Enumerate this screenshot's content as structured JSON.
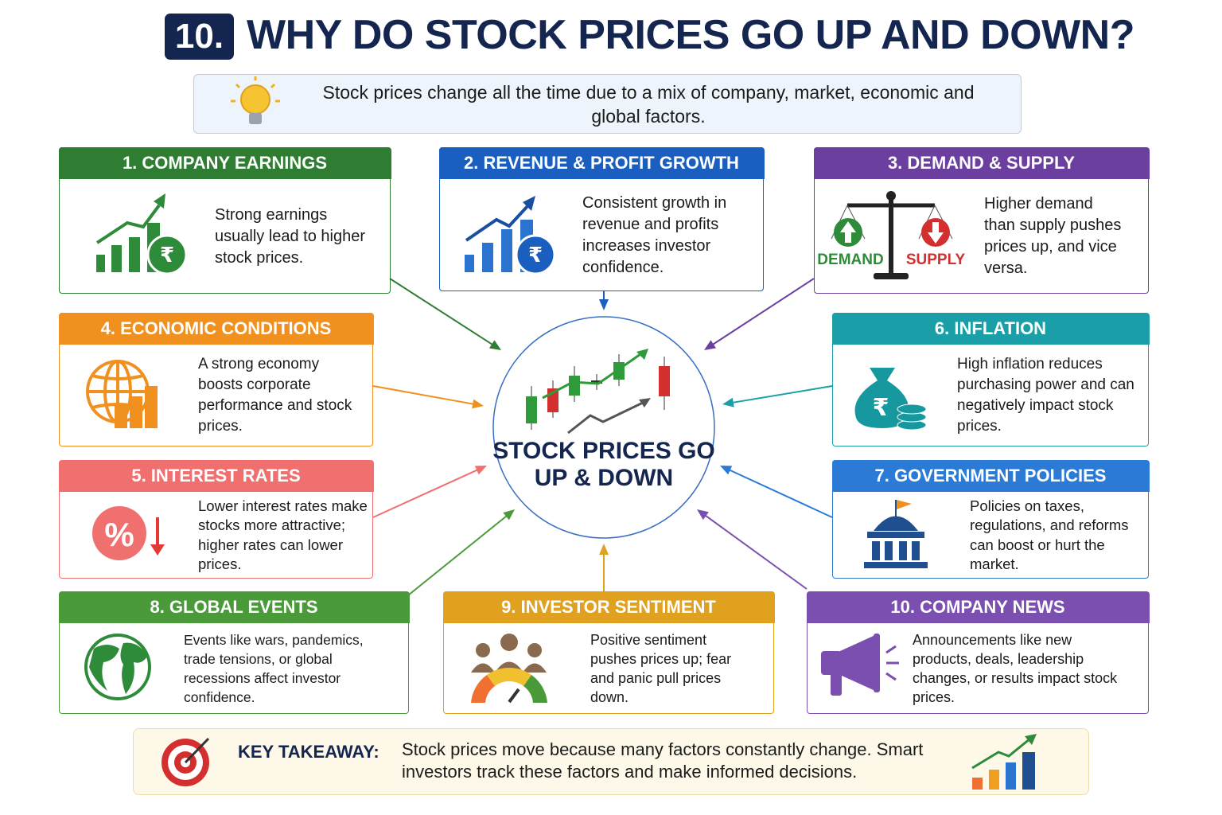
{
  "header": {
    "number": "10.",
    "title": "WHY DO STOCK PRICES GO UP AND DOWN?"
  },
  "intro": "Stock prices change all the time due to a mix of company, market, economic and global factors.",
  "center": {
    "label": "STOCK PRICES GO UP & DOWN"
  },
  "factors": [
    {
      "title": "1. COMPANY EARNINGS",
      "text": "Strong earnings usually lead to higher stock prices."
    },
    {
      "title": "2. REVENUE & PROFIT GROWTH",
      "text": "Consistent growth in revenue and profits increases investor confidence."
    },
    {
      "title": "3. DEMAND & SUPPLY",
      "text": "Higher demand than supply pushes prices up, and vice versa.",
      "icon_labels": [
        "DEMAND",
        "SUPPLY"
      ]
    },
    {
      "title": "4. ECONOMIC CONDITIONS",
      "text": "A strong economy boosts corporate performance and stock prices."
    },
    {
      "title": "5. INTEREST RATES",
      "text": "Lower interest rates make stocks more attractive; higher rates can lower prices."
    },
    {
      "title": "6. INFLATION",
      "text": "High inflation reduces purchasing power and can negatively impact stock prices."
    },
    {
      "title": "7. GOVERNMENT POLICIES",
      "text": "Policies on taxes, regulations, and reforms can boost or hurt the market."
    },
    {
      "title": "8. GLOBAL EVENTS",
      "text": "Events like wars, pandemics, trade tensions, or global recessions affect investor confidence."
    },
    {
      "title": "9. INVESTOR SENTIMENT",
      "text": "Positive sentiment pushes prices up; fear and panic pull prices down."
    },
    {
      "title": "10. COMPANY NEWS",
      "text": "Announcements like new products, deals, leadership changes, or results impact stock prices."
    }
  ],
  "takeaway": {
    "label": "KEY TAKEAWAY:",
    "text": "Stock prices move because many factors constantly change. Smart investors track these factors and make informed decisions."
  }
}
